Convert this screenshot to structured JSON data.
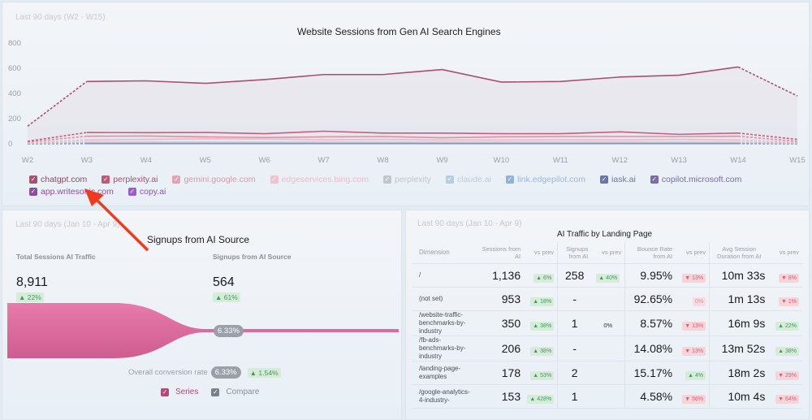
{
  "top_panel": {
    "date_range": "Last 90 days (W2 - W15)",
    "title": "Website Sessions from Gen AI Search Engines"
  },
  "chart_data": {
    "type": "line",
    "title": "Website Sessions from Gen AI Search Engines",
    "xlabel": "",
    "ylabel": "",
    "ylim": [
      0,
      800
    ],
    "yticks": [
      "0",
      "200",
      "400",
      "600",
      "800"
    ],
    "categories": [
      "W2",
      "W3",
      "W4",
      "W5",
      "W6",
      "W7",
      "W8",
      "W9",
      "W10",
      "W11",
      "W12",
      "W13",
      "W14",
      "W15"
    ],
    "grid": false,
    "dashed_segments": "first and last segments are dashed (partial periods)",
    "series": [
      {
        "name": "chatgpt.com",
        "color": "#a8506f",
        "values": [
          140,
          495,
          500,
          480,
          510,
          550,
          550,
          590,
          490,
          495,
          530,
          545,
          610,
          380
        ]
      },
      {
        "name": "perplexity.ai",
        "color": "#c2607a",
        "values": [
          20,
          90,
          88,
          90,
          80,
          100,
          85,
          85,
          80,
          80,
          95,
          75,
          85,
          35
        ]
      },
      {
        "name": "gemini.google.com",
        "color": "#df8fa0",
        "values": [
          15,
          60,
          62,
          55,
          50,
          55,
          58,
          48,
          55,
          58,
          58,
          58,
          60,
          20
        ]
      },
      {
        "name": "edgeservices.bing.com",
        "color": "#efb8c4",
        "values": [
          10,
          30,
          35,
          40,
          38,
          32,
          35,
          30,
          30,
          32,
          30,
          35,
          30,
          12
        ]
      },
      {
        "name": "perplexity",
        "color": "#c0c4ca",
        "values": [
          5,
          12,
          12,
          12,
          12,
          12,
          12,
          12,
          12,
          12,
          12,
          12,
          12,
          5
        ]
      },
      {
        "name": "claude.ai",
        "color": "#a9c4dc",
        "values": [
          5,
          10,
          10,
          10,
          10,
          10,
          10,
          10,
          10,
          10,
          10,
          10,
          10,
          5
        ]
      },
      {
        "name": "link.edgepilot.com",
        "color": "#89acd3",
        "values": [
          4,
          8,
          8,
          8,
          8,
          8,
          8,
          8,
          8,
          8,
          8,
          8,
          8,
          4
        ]
      },
      {
        "name": "iask.ai",
        "color": "#6a75a8",
        "values": [
          3,
          6,
          6,
          6,
          6,
          6,
          6,
          6,
          6,
          6,
          6,
          6,
          6,
          3
        ]
      },
      {
        "name": "copilot.microsoft.com",
        "color": "#7b6ba6",
        "values": [
          2,
          5,
          5,
          5,
          5,
          5,
          5,
          5,
          5,
          5,
          5,
          5,
          5,
          2
        ]
      },
      {
        "name": "app.writesonic.com",
        "color": "#8a56a2",
        "values": [
          2,
          4,
          4,
          4,
          4,
          4,
          4,
          4,
          4,
          4,
          4,
          4,
          4,
          2
        ]
      },
      {
        "name": "copy.ai",
        "color": "#9b5ccf",
        "values": [
          1,
          3,
          3,
          3,
          3,
          3,
          3,
          3,
          3,
          3,
          3,
          3,
          3,
          1
        ]
      }
    ]
  },
  "legend": {
    "items": [
      {
        "label": "chatgpt.com",
        "color": "#a8506f",
        "text_color": "#8c4a68"
      },
      {
        "label": "perplexity.ai",
        "color": "#bd5a74",
        "text_color": "#a8506f"
      },
      {
        "label": "gemini.google.com",
        "color": "#e4a3b0",
        "text_color": "#d99aa8"
      },
      {
        "label": "edgeservices.bing.com",
        "color": "#f0c2cc",
        "text_color": "#efbcc7"
      },
      {
        "label": "perplexity",
        "color": "#c2c6cc",
        "text_color": "#c2c6cc"
      },
      {
        "label": "claude.ai",
        "color": "#b5cde2",
        "text_color": "#b5cde2"
      },
      {
        "label": "link.edgepilot.com",
        "color": "#8fb2d8",
        "text_color": "#9bb8d8"
      },
      {
        "label": "iask.ai",
        "color": "#6a75a8",
        "text_color": "#6a75a8"
      },
      {
        "label": "copilot.microsoft.com",
        "color": "#7b6ba6",
        "text_color": "#7b6ba6"
      },
      {
        "label": "app.writesonic.com",
        "color": "#8a4f9e",
        "text_color": "#8a4f9e"
      },
      {
        "label": "copy.ai",
        "color": "#9b5ccf",
        "text_color": "#8a55b8"
      }
    ]
  },
  "annotation": {
    "text": "Signups from AI Source",
    "arrow_color": "#f03a1e"
  },
  "funnel_panel": {
    "date_range": "Last 90 days (Jan 10 - Apr 9)",
    "kpi1": {
      "label": "Total Sessions AI Traffic",
      "value": "8,911",
      "change": "▲ 22%"
    },
    "kpi2": {
      "label": "Signups from AI Source",
      "value": "564",
      "change": "▲ 61%"
    },
    "step_rate": "6.33%",
    "conversion_label": "Overall conversion rate",
    "conversion_value": "6.33%",
    "conversion_change": "▲ 1.54%",
    "funnel_color": "#e06aa0",
    "legend": {
      "series": "Series",
      "compare": "Compare",
      "series_color": "#b5477a",
      "compare_color": "#7c8189"
    }
  },
  "table_panel": {
    "date_range": "Last 90 days (Jan 10 - Apr 9)",
    "title": "AI Traffic by Landing Page",
    "headers": {
      "dimension": "Dimension",
      "sessions": "Sessions from AI",
      "vs1": "vs prev",
      "signups": "Signups from AI",
      "vs2": "vs prev",
      "bounce": "Bounce Rate from AI",
      "vs3": "vs prev",
      "duration": "Avg Session Duration from AI",
      "vs4": "vs prev"
    },
    "rows": [
      {
        "dimension": "/",
        "sessions": "1,136",
        "s_vs": "▲ 6%",
        "s_dir": "up",
        "signups": "258",
        "g_vs": "▲ 40%",
        "g_dir": "up",
        "bounce": "9.95%",
        "b_vs": "▼ 13%",
        "b_dir": "down",
        "duration": "10m 33s",
        "d_vs": "▼ 8%",
        "d_dir": "down"
      },
      {
        "dimension": "(not set)",
        "sessions": "953",
        "s_vs": "▲ 18%",
        "s_dir": "up",
        "signups": "-",
        "g_vs": "",
        "g_dir": "none",
        "bounce": "92.65%",
        "b_vs": "0%",
        "b_dir": "neu",
        "duration": "1m 13s",
        "d_vs": "▼ 1%",
        "d_dir": "down"
      },
      {
        "dimension": "/website-traffic-benchmarks-by-industry",
        "sessions": "350",
        "s_vs": "▲ 38%",
        "s_dir": "up",
        "signups": "1",
        "g_vs": "0%",
        "g_dir": "plain",
        "bounce": "8.57%",
        "b_vs": "▼ 13%",
        "b_dir": "down",
        "duration": "16m 9s",
        "d_vs": "▲ 22%",
        "d_dir": "up"
      },
      {
        "dimension": "/fb-ads-benchmarks-by-industry",
        "sessions": "206",
        "s_vs": "▲ 38%",
        "s_dir": "up",
        "signups": "-",
        "g_vs": "",
        "g_dir": "none",
        "bounce": "14.08%",
        "b_vs": "▼ 13%",
        "b_dir": "down",
        "duration": "13m 52s",
        "d_vs": "▲ 38%",
        "d_dir": "up"
      },
      {
        "dimension": "/landing-page-examples",
        "sessions": "178",
        "s_vs": "▲ 53%",
        "s_dir": "up",
        "signups": "2",
        "g_vs": "",
        "g_dir": "none",
        "bounce": "15.17%",
        "b_vs": "▲ 4%",
        "b_dir": "up",
        "duration": "18m 2s",
        "d_vs": "▼ 29%",
        "d_dir": "down"
      },
      {
        "dimension": "/google-analytics-4-industry-",
        "sessions": "153",
        "s_vs": "▲ 428%",
        "s_dir": "up",
        "signups": "1",
        "g_vs": "",
        "g_dir": "none",
        "bounce": "4.58%",
        "b_vs": "▼ 56%",
        "b_dir": "down",
        "duration": "10m 4s",
        "d_vs": "▼ 64%",
        "d_dir": "down"
      }
    ]
  }
}
